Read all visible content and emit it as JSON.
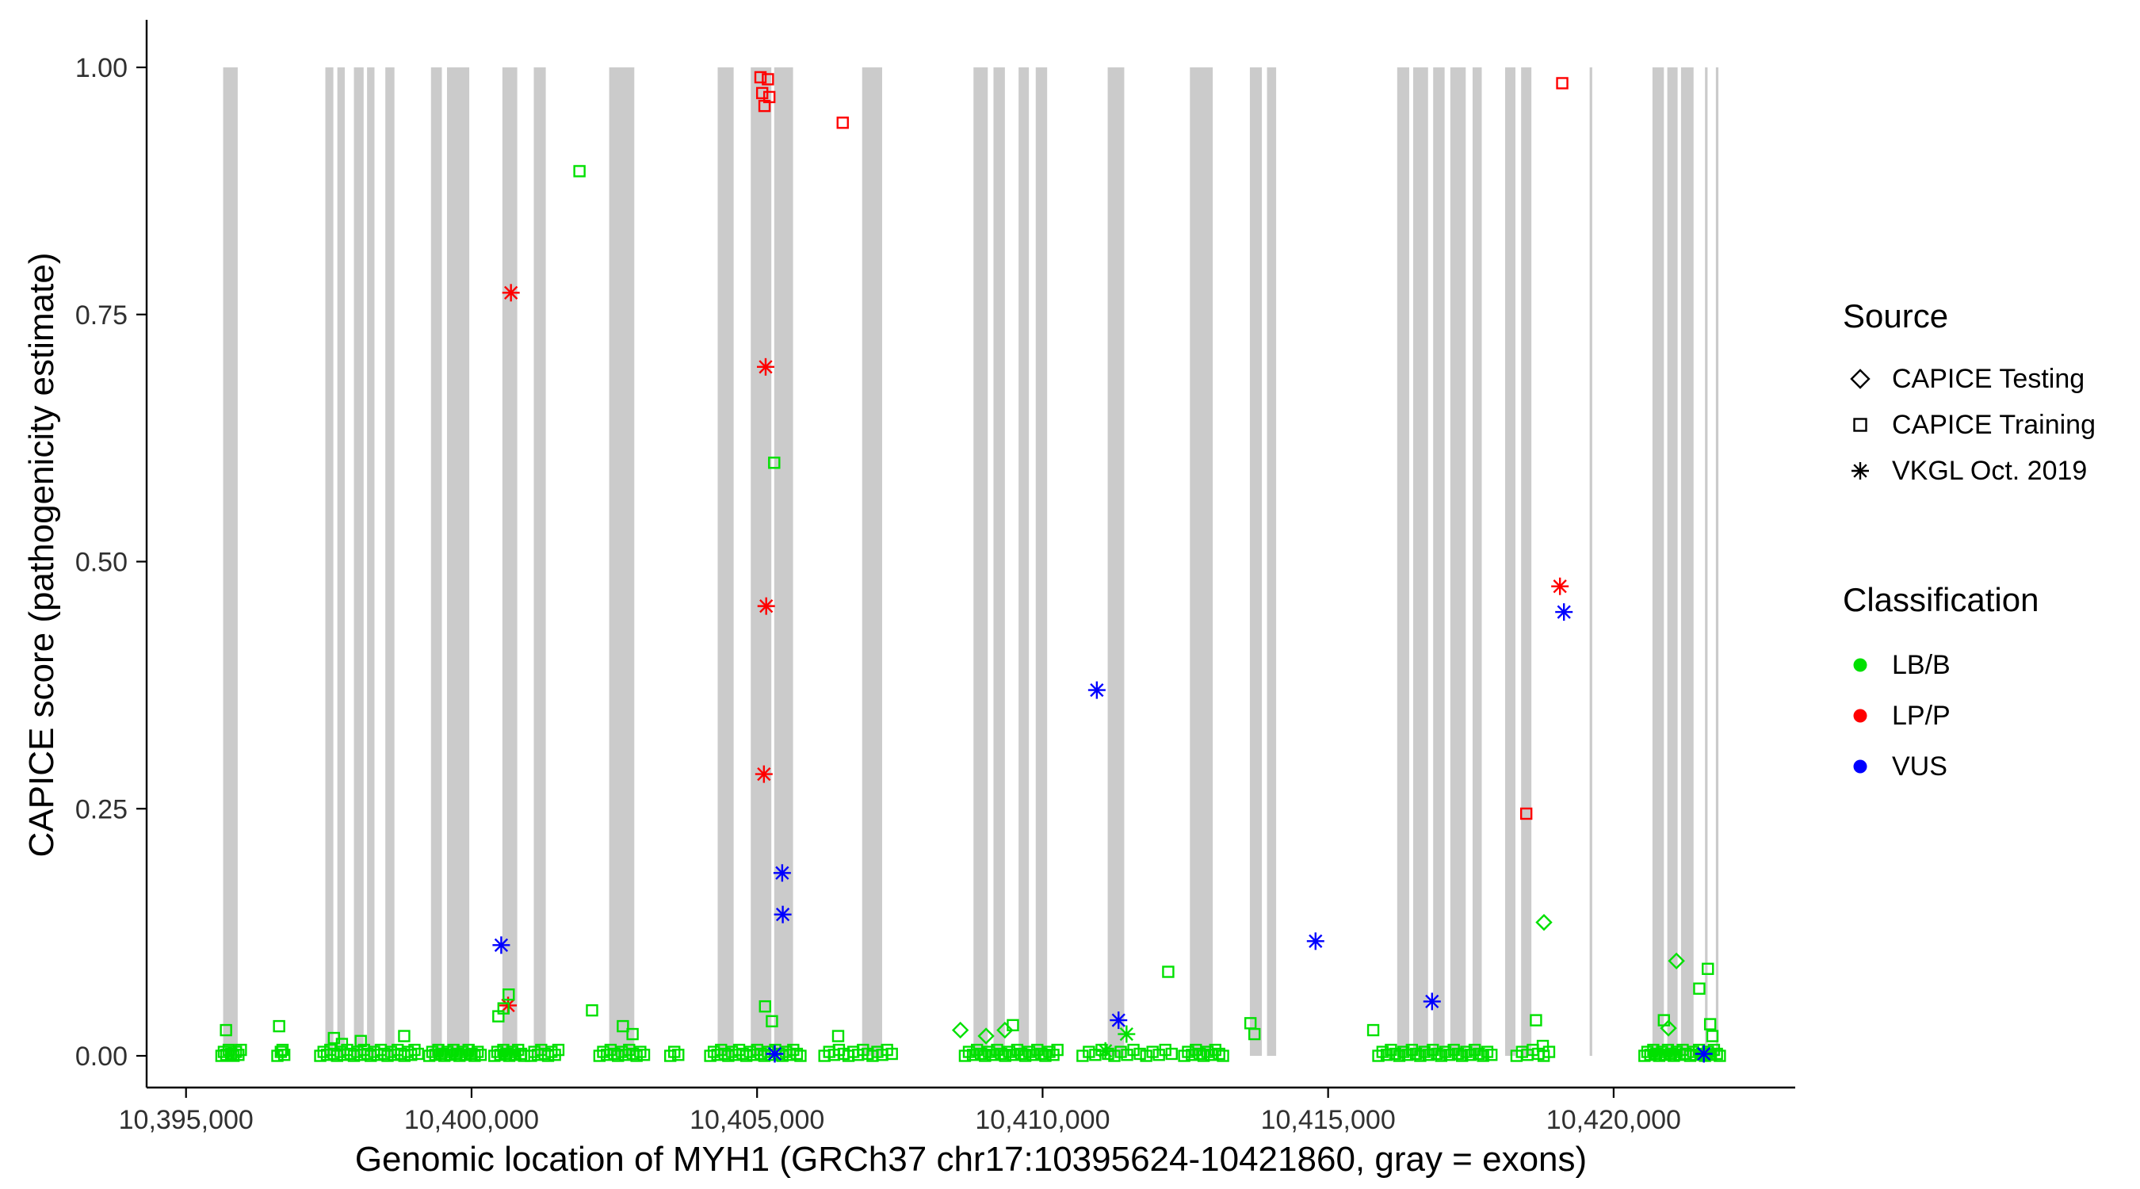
{
  "legend": {
    "source": {
      "title": "Source",
      "items": [
        {
          "label": "CAPICE Testing",
          "marker": "diamond"
        },
        {
          "label": "CAPICE Training",
          "marker": "square"
        },
        {
          "label": "VKGL Oct. 2019",
          "marker": "asterisk"
        }
      ]
    },
    "classification": {
      "title": "Classification",
      "items": [
        {
          "label": "LB/B",
          "color": "#00E000"
        },
        {
          "label": "LP/P",
          "color": "#FF0000"
        },
        {
          "label": "VUS",
          "color": "#0000FF"
        }
      ]
    }
  },
  "chart_data": {
    "type": "scatter",
    "title": "",
    "xlabel": "Genomic location of MYH1 (GRCh37 chr17:10395624-10421860, gray = exons)",
    "ylabel": "CAPICE score (pathogenicity estimate)",
    "x_domain": [
      10394310,
      10423180
    ],
    "y_domain": [
      -0.04,
      1.05
    ],
    "x_ticks": [
      {
        "value": 10395000,
        "label": "10,395,000"
      },
      {
        "value": 10400000,
        "label": "10,400,000"
      },
      {
        "value": 10405000,
        "label": "10,405,000"
      },
      {
        "value": 10410000,
        "label": "10,410,000"
      },
      {
        "value": 10415000,
        "label": "10,415,000"
      },
      {
        "value": 10420000,
        "label": "10,420,000"
      }
    ],
    "y_ticks": [
      {
        "value": 0.0,
        "label": "0.00"
      },
      {
        "value": 0.25,
        "label": "0.25"
      },
      {
        "value": 0.5,
        "label": "0.50"
      },
      {
        "value": 0.75,
        "label": "0.75"
      },
      {
        "value": 1.0,
        "label": "1.00"
      }
    ],
    "colors": {
      "LB/B": "#00E000",
      "LP/P": "#FF0000",
      "VUS": "#0000FF",
      "exon": "#CBCBCB",
      "axis": "#000000",
      "tick_text": "#303030"
    },
    "exons": [
      [
        10395650,
        10395905
      ],
      [
        10397440,
        10397580
      ],
      [
        10397650,
        10397780
      ],
      [
        10397940,
        10398110
      ],
      [
        10398170,
        10398300
      ],
      [
        10398490,
        10398650
      ],
      [
        10399290,
        10399480
      ],
      [
        10399570,
        10399960
      ],
      [
        10400540,
        10400800
      ],
      [
        10401090,
        10401300
      ],
      [
        10402410,
        10402850
      ],
      [
        10404310,
        10404590
      ],
      [
        10404890,
        10405250
      ],
      [
        10405300,
        10405630
      ],
      [
        10406840,
        10407190
      ],
      [
        10408790,
        10409040
      ],
      [
        10409140,
        10409340
      ],
      [
        10409580,
        10409760
      ],
      [
        10409880,
        10410080
      ],
      [
        10411140,
        10411430
      ],
      [
        10412580,
        10412980
      ],
      [
        10413630,
        10413840
      ],
      [
        10413930,
        10414090
      ],
      [
        10416210,
        10416420
      ],
      [
        10416490,
        10416750
      ],
      [
        10416840,
        10417040
      ],
      [
        10417140,
        10417410
      ],
      [
        10417530,
        10417690
      ],
      [
        10418100,
        10418280
      ],
      [
        10418380,
        10418560
      ],
      [
        10419580,
        10419625
      ],
      [
        10420680,
        10420880
      ],
      [
        10420940,
        10421120
      ],
      [
        10421180,
        10421400
      ],
      [
        10421600,
        10421645
      ],
      [
        10421790,
        10421835
      ]
    ],
    "points": [
      {
        "g": 10405060,
        "y": 0.99,
        "m": "square",
        "c": "LP/P"
      },
      {
        "g": 10405190,
        "y": 0.988,
        "m": "square",
        "c": "LP/P"
      },
      {
        "g": 10405090,
        "y": 0.974,
        "m": "square",
        "c": "LP/P"
      },
      {
        "g": 10405215,
        "y": 0.97,
        "m": "square",
        "c": "LP/P"
      },
      {
        "g": 10405130,
        "y": 0.961,
        "m": "square",
        "c": "LP/P"
      },
      {
        "g": 10406500,
        "y": 0.944,
        "m": "square",
        "c": "LP/P"
      },
      {
        "g": 10419100,
        "y": 0.984,
        "m": "square",
        "c": "LP/P"
      },
      {
        "g": 10418470,
        "y": 0.245,
        "m": "square",
        "c": "LP/P"
      },
      {
        "g": 10400690,
        "y": 0.772,
        "m": "asterisk",
        "c": "LP/P"
      },
      {
        "g": 10405150,
        "y": 0.697,
        "m": "asterisk",
        "c": "LP/P"
      },
      {
        "g": 10405160,
        "y": 0.455,
        "m": "asterisk",
        "c": "LP/P"
      },
      {
        "g": 10405120,
        "y": 0.285,
        "m": "asterisk",
        "c": "LP/P"
      },
      {
        "g": 10419060,
        "y": 0.475,
        "m": "asterisk",
        "c": "LP/P"
      },
      {
        "g": 10400640,
        "y": 0.051,
        "m": "asterisk",
        "c": "LP/P"
      },
      {
        "g": 10400520,
        "y": 0.112,
        "m": "asterisk",
        "c": "VUS"
      },
      {
        "g": 10405440,
        "y": 0.185,
        "m": "asterisk",
        "c": "VUS"
      },
      {
        "g": 10405450,
        "y": 0.143,
        "m": "asterisk",
        "c": "VUS"
      },
      {
        "g": 10410950,
        "y": 0.37,
        "m": "asterisk",
        "c": "VUS"
      },
      {
        "g": 10411330,
        "y": 0.036,
        "m": "asterisk",
        "c": "VUS"
      },
      {
        "g": 10414780,
        "y": 0.116,
        "m": "asterisk",
        "c": "VUS"
      },
      {
        "g": 10416820,
        "y": 0.055,
        "m": "asterisk",
        "c": "VUS"
      },
      {
        "g": 10419130,
        "y": 0.449,
        "m": "asterisk",
        "c": "VUS"
      },
      {
        "g": 10405310,
        "y": 0.002,
        "m": "asterisk",
        "c": "VUS"
      },
      {
        "g": 10421580,
        "y": 0.002,
        "m": "asterisk",
        "c": "VUS"
      },
      {
        "g": 10401890,
        "y": 0.895,
        "m": "square",
        "c": "LB/B"
      },
      {
        "g": 10405300,
        "y": 0.6,
        "m": "square",
        "c": "LB/B"
      },
      {
        "g": 10395700,
        "y": 0.026,
        "m": "square",
        "c": "LB/B"
      },
      {
        "g": 10396630,
        "y": 0.03,
        "m": "square",
        "c": "LB/B"
      },
      {
        "g": 10396690,
        "y": 0.006,
        "m": "square",
        "c": "LB/B"
      },
      {
        "g": 10397590,
        "y": 0.018,
        "m": "square",
        "c": "LB/B"
      },
      {
        "g": 10397730,
        "y": 0.012,
        "m": "square",
        "c": "LB/B"
      },
      {
        "g": 10398060,
        "y": 0.015,
        "m": "square",
        "c": "LB/B"
      },
      {
        "g": 10398820,
        "y": 0.02,
        "m": "square",
        "c": "LB/B"
      },
      {
        "g": 10400470,
        "y": 0.04,
        "m": "square",
        "c": "LB/B"
      },
      {
        "g": 10400560,
        "y": 0.048,
        "m": "square",
        "c": "LB/B"
      },
      {
        "g": 10400650,
        "y": 0.062,
        "m": "square",
        "c": "LB/B"
      },
      {
        "g": 10402110,
        "y": 0.046,
        "m": "square",
        "c": "LB/B"
      },
      {
        "g": 10402650,
        "y": 0.03,
        "m": "square",
        "c": "LB/B"
      },
      {
        "g": 10402820,
        "y": 0.022,
        "m": "square",
        "c": "LB/B"
      },
      {
        "g": 10405140,
        "y": 0.05,
        "m": "square",
        "c": "LB/B"
      },
      {
        "g": 10405260,
        "y": 0.035,
        "m": "square",
        "c": "LB/B"
      },
      {
        "g": 10406420,
        "y": 0.02,
        "m": "square",
        "c": "LB/B"
      },
      {
        "g": 10408560,
        "y": 0.026,
        "m": "diamond",
        "c": "LB/B"
      },
      {
        "g": 10409010,
        "y": 0.02,
        "m": "diamond",
        "c": "LB/B"
      },
      {
        "g": 10409340,
        "y": 0.026,
        "m": "diamond",
        "c": "LB/B"
      },
      {
        "g": 10409480,
        "y": 0.031,
        "m": "square",
        "c": "LB/B"
      },
      {
        "g": 10412200,
        "y": 0.085,
        "m": "square",
        "c": "LB/B"
      },
      {
        "g": 10411470,
        "y": 0.022,
        "m": "asterisk",
        "c": "LB/B"
      },
      {
        "g": 10411100,
        "y": 0.005,
        "m": "asterisk",
        "c": "LB/B"
      },
      {
        "g": 10413640,
        "y": 0.033,
        "m": "square",
        "c": "LB/B"
      },
      {
        "g": 10413710,
        "y": 0.022,
        "m": "square",
        "c": "LB/B"
      },
      {
        "g": 10415790,
        "y": 0.026,
        "m": "square",
        "c": "LB/B"
      },
      {
        "g": 10418640,
        "y": 0.036,
        "m": "square",
        "c": "LB/B"
      },
      {
        "g": 10418760,
        "y": 0.01,
        "m": "square",
        "c": "LB/B"
      },
      {
        "g": 10418780,
        "y": 0.135,
        "m": "diamond",
        "c": "LB/B"
      },
      {
        "g": 10420880,
        "y": 0.036,
        "m": "square",
        "c": "LB/B"
      },
      {
        "g": 10420960,
        "y": 0.028,
        "m": "diamond",
        "c": "LB/B"
      },
      {
        "g": 10421100,
        "y": 0.096,
        "m": "diamond",
        "c": "LB/B"
      },
      {
        "g": 10421500,
        "y": 0.068,
        "m": "square",
        "c": "LB/B"
      },
      {
        "g": 10421650,
        "y": 0.088,
        "m": "square",
        "c": "LB/B"
      },
      {
        "g": 10421690,
        "y": 0.032,
        "m": "square",
        "c": "LB/B"
      },
      {
        "g": 10421730,
        "y": 0.02,
        "m": "square",
        "c": "LB/B"
      }
    ],
    "baseline_clusters": [
      {
        "start": 10395620,
        "end": 10395960,
        "count": 9,
        "m": "square",
        "c": "LB/B"
      },
      {
        "start": 10396600,
        "end": 10396720,
        "count": 3,
        "m": "square",
        "c": "LB/B"
      },
      {
        "start": 10397350,
        "end": 10399060,
        "count": 30,
        "m": "square",
        "c": "LB/B"
      },
      {
        "start": 10399260,
        "end": 10400160,
        "count": 18,
        "m": "square",
        "c": "LB/B"
      },
      {
        "start": 10400400,
        "end": 10400920,
        "count": 11,
        "m": "square",
        "c": "LB/B"
      },
      {
        "start": 10401040,
        "end": 10401520,
        "count": 9,
        "m": "square",
        "c": "LB/B"
      },
      {
        "start": 10402240,
        "end": 10403020,
        "count": 13,
        "m": "square",
        "c": "LB/B"
      },
      {
        "start": 10403480,
        "end": 10403620,
        "count": 3,
        "m": "square",
        "c": "LB/B"
      },
      {
        "start": 10404180,
        "end": 10405760,
        "count": 26,
        "m": "square",
        "c": "LB/B"
      },
      {
        "start": 10406180,
        "end": 10407360,
        "count": 15,
        "m": "square",
        "c": "LB/B"
      },
      {
        "start": 10408640,
        "end": 10410260,
        "count": 24,
        "m": "square",
        "c": "LB/B"
      },
      {
        "start": 10410700,
        "end": 10412260,
        "count": 15,
        "m": "square",
        "c": "LB/B"
      },
      {
        "start": 10412480,
        "end": 10413160,
        "count": 11,
        "m": "square",
        "c": "LB/B"
      },
      {
        "start": 10415880,
        "end": 10417860,
        "count": 28,
        "m": "square",
        "c": "LB/B"
      },
      {
        "start": 10418300,
        "end": 10418870,
        "count": 7,
        "m": "square",
        "c": "LB/B"
      },
      {
        "start": 10420540,
        "end": 10421260,
        "count": 15,
        "m": "square",
        "c": "LB/B"
      },
      {
        "start": 10421340,
        "end": 10421860,
        "count": 11,
        "m": "square",
        "c": "LB/B"
      }
    ]
  }
}
